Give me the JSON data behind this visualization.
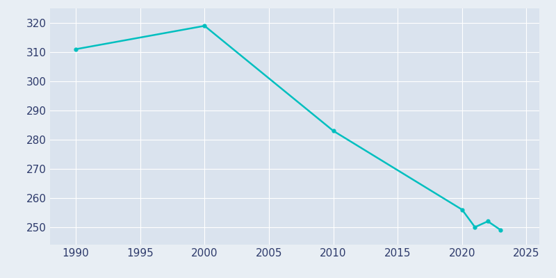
{
  "years": [
    1990,
    2000,
    2010,
    2020,
    2021,
    2022,
    2023
  ],
  "population": [
    311,
    319,
    283,
    256,
    250,
    252,
    249
  ],
  "line_color": "#00BFBF",
  "bg_color": "#E8EEF4",
  "plot_bg_color": "#DAE3EE",
  "xlim": [
    1988,
    2026
  ],
  "ylim": [
    244,
    325
  ],
  "xticks": [
    1990,
    1995,
    2000,
    2005,
    2010,
    2015,
    2020,
    2025
  ],
  "yticks": [
    250,
    260,
    270,
    280,
    290,
    300,
    310,
    320
  ],
  "grid_color": "#FFFFFF",
  "line_width": 1.8,
  "marker": "o",
  "marker_size": 3.5,
  "tick_label_color": "#2D3A6B",
  "tick_label_size": 11
}
